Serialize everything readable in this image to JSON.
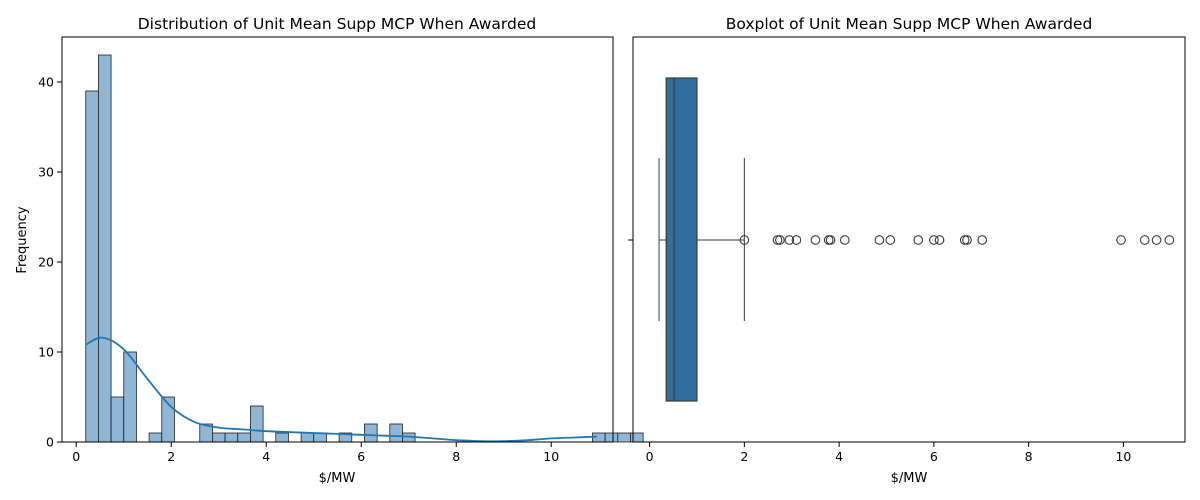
{
  "colors": {
    "hist_fill": "#8fb6d5",
    "hist_edge": "#1f1f1f",
    "kde_line": "#1f77b4",
    "box_fill": "#2f6f9f",
    "axis": "#000000"
  },
  "chart_data": [
    {
      "type": "histogram",
      "title": "Distribution of Unit Mean Supp MCP When Awarded",
      "xlabel": "$/MW",
      "ylabel": "Frequency",
      "xlim": [
        -0.3,
        11.3
      ],
      "ylim": [
        0,
        45
      ],
      "xticks": [
        0,
        2,
        4,
        6,
        8,
        10
      ],
      "yticks": [
        0,
        10,
        20,
        30,
        40
      ],
      "bin_width": 0.2667,
      "bins_start": 0.2,
      "counts": [
        39,
        43,
        5,
        10,
        0,
        1,
        5,
        0,
        0,
        2,
        1,
        1,
        1,
        4,
        0,
        1,
        0,
        1,
        1,
        0,
        1,
        0,
        2,
        0,
        2,
        1,
        0,
        0,
        0,
        0,
        0,
        0,
        0,
        0,
        0,
        0,
        0,
        0,
        0,
        0,
        1,
        1,
        1,
        1
      ],
      "kde": {
        "x": [
          0.2,
          0.55,
          1.0,
          1.5,
          2.0,
          2.5,
          3.0,
          3.5,
          4.0,
          4.5,
          5.0,
          5.5,
          6.0,
          6.5,
          7.0,
          7.5,
          8.0,
          8.5,
          9.0,
          9.5,
          10.0,
          10.5,
          10.96
        ],
        "y": [
          10.8,
          11.6,
          10.3,
          7.0,
          3.9,
          2.2,
          1.6,
          1.4,
          1.2,
          1.1,
          1.0,
          0.9,
          0.8,
          0.7,
          0.6,
          0.4,
          0.2,
          0.1,
          0.1,
          0.2,
          0.4,
          0.5,
          0.6
        ]
      }
    },
    {
      "type": "boxplot",
      "title": "Boxplot of Unit Mean Supp MCP When Awarded",
      "xlabel": "$/MW",
      "xlim": [
        -0.35,
        11.3
      ],
      "xticks": [
        0,
        2,
        4,
        6,
        8,
        10
      ],
      "box": {
        "whisker_low": 0.2,
        "q1": 0.35,
        "median": 0.52,
        "q3": 1.0,
        "whisker_high": 2.0
      },
      "outliers": [
        2.0,
        2.7,
        2.75,
        2.95,
        3.1,
        3.5,
        3.78,
        3.82,
        4.12,
        4.85,
        5.08,
        5.67,
        6.0,
        6.12,
        6.65,
        6.7,
        7.02,
        9.95,
        10.45,
        10.7,
        10.97
      ]
    }
  ]
}
